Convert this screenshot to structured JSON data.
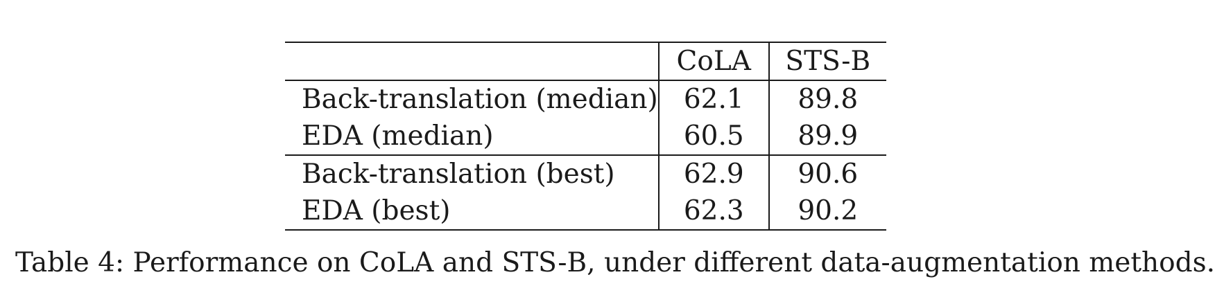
{
  "table": {
    "headers": [
      "",
      "CoLA",
      "STS-B"
    ],
    "groups": [
      {
        "rows": [
          {
            "method": "Back-translation (median)",
            "cola": "62.1",
            "stsb": "89.8"
          },
          {
            "method": "EDA (median)",
            "cola": "60.5",
            "stsb": "89.9"
          }
        ]
      },
      {
        "rows": [
          {
            "method": "Back-translation (best)",
            "cola": "62.9",
            "stsb": "90.6"
          },
          {
            "method": "EDA (best)",
            "cola": "62.3",
            "stsb": "90.2"
          }
        ]
      }
    ]
  },
  "caption": "Table 4: Performance on CoLA and STS-B, under different data-augmentation methods."
}
